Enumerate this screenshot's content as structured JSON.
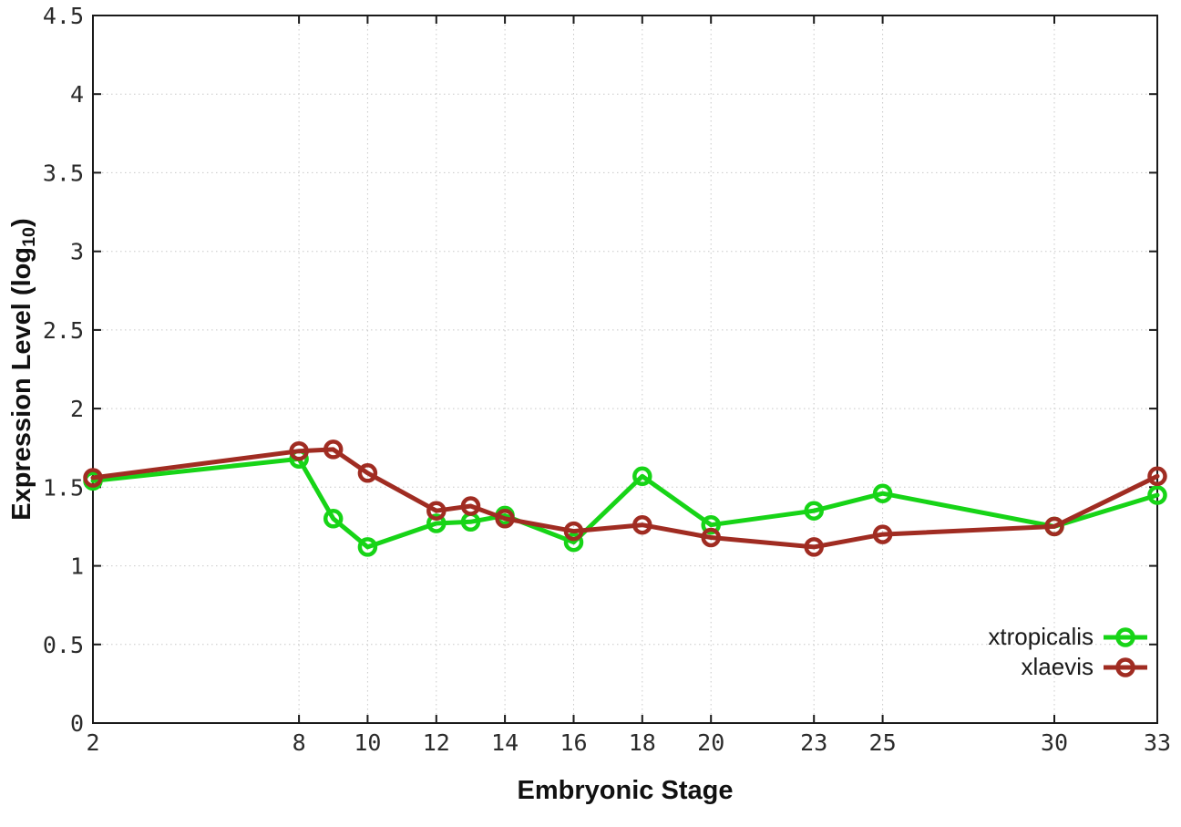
{
  "figure": {
    "background": "#ffffff",
    "border_color": "#1a1a1a",
    "grid_color": "#c8c8c8",
    "tick_label_color": "#2b2b2b"
  },
  "chart_data": {
    "type": "line",
    "title": "",
    "xlabel": "Embryonic Stage",
    "ylabel": "Expression Level (log10)",
    "ylabel_parts": {
      "main": "Expression Level (log",
      "sub": "10",
      "close": ")"
    },
    "x": [
      2,
      8,
      9,
      10,
      12,
      13,
      14,
      16,
      18,
      20,
      23,
      25,
      30,
      33
    ],
    "xlim": [
      2,
      33
    ],
    "ylim": [
      0,
      4.5
    ],
    "xticks": [
      2,
      8,
      10,
      12,
      14,
      16,
      18,
      20,
      23,
      25,
      30,
      33
    ],
    "yticks": [
      0,
      0.5,
      1,
      1.5,
      2,
      2.5,
      3,
      3.5,
      4,
      4.5
    ],
    "ytick_labels": [
      "0",
      "0.5",
      "1",
      "1.5",
      "2",
      "2.5",
      "3",
      "3.5",
      "4",
      "4.5"
    ],
    "grid": true,
    "legend_position": "inside-bottom-right",
    "marker": "open-circle",
    "series": [
      {
        "name": "xtropicalis",
        "color": "#17d417",
        "values": [
          1.54,
          1.68,
          1.3,
          1.12,
          1.27,
          1.28,
          1.32,
          1.15,
          1.57,
          1.26,
          1.35,
          1.46,
          1.25,
          1.45
        ]
      },
      {
        "name": "xlaevis",
        "color": "#a02c22",
        "values": [
          1.56,
          1.73,
          1.74,
          1.59,
          1.35,
          1.38,
          1.3,
          1.22,
          1.26,
          1.18,
          1.12,
          1.2,
          1.25,
          1.57
        ]
      }
    ]
  }
}
